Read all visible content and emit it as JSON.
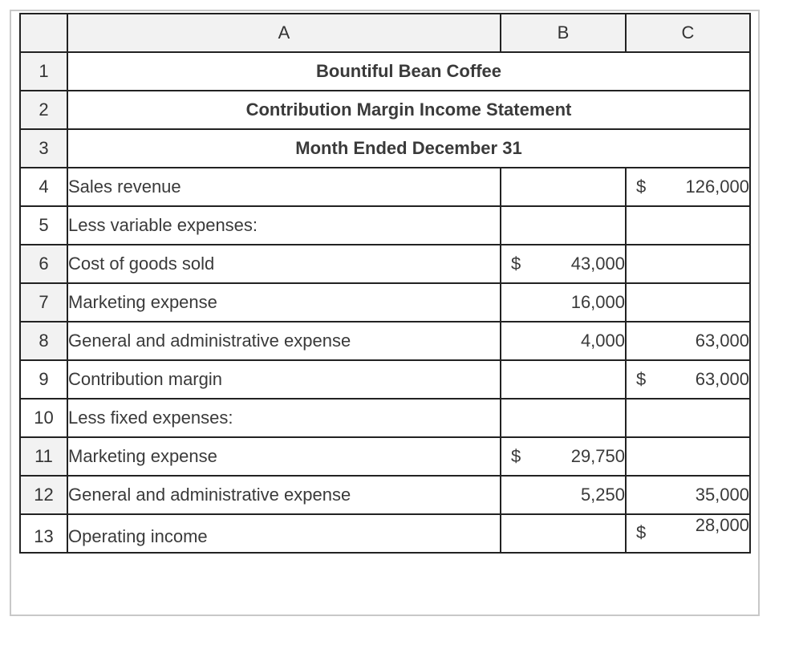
{
  "columns": [
    "",
    "A",
    "B",
    "C"
  ],
  "title_rows": [
    {
      "num": "1",
      "text": "Bountiful Bean Coffee"
    },
    {
      "num": "2",
      "text": "Contribution Margin Income Statement"
    },
    {
      "num": "3",
      "text": "Month Ended December 31"
    }
  ],
  "rows": {
    "r4": {
      "num": "4",
      "label": "Sales revenue",
      "c_dollar": "$",
      "c": "126,000"
    },
    "r5": {
      "num": "5",
      "label": "Less variable expenses:"
    },
    "r6": {
      "num": "6",
      "label": "Cost of goods sold",
      "b_dollar": "$",
      "b": "43,000"
    },
    "r7": {
      "num": "7",
      "label": "Marketing expense",
      "b": "16,000"
    },
    "r8": {
      "num": "8",
      "label": "General and administrative expense",
      "b": "4,000",
      "c": "63,000"
    },
    "r9": {
      "num": "9",
      "label": "Contribution margin",
      "c_dollar": "$",
      "c": "63,000"
    },
    "r10": {
      "num": "10",
      "label": "Less fixed expenses:"
    },
    "r11": {
      "num": "11",
      "label": "Marketing expense",
      "b_dollar": "$",
      "b": "29,750"
    },
    "r12": {
      "num": "12",
      "label": "General and administrative expense",
      "b": "5,250",
      "c": "35,000"
    },
    "r13": {
      "num": "13",
      "label": "Operating income",
      "c_dollar": "$",
      "c": "28,000"
    }
  }
}
